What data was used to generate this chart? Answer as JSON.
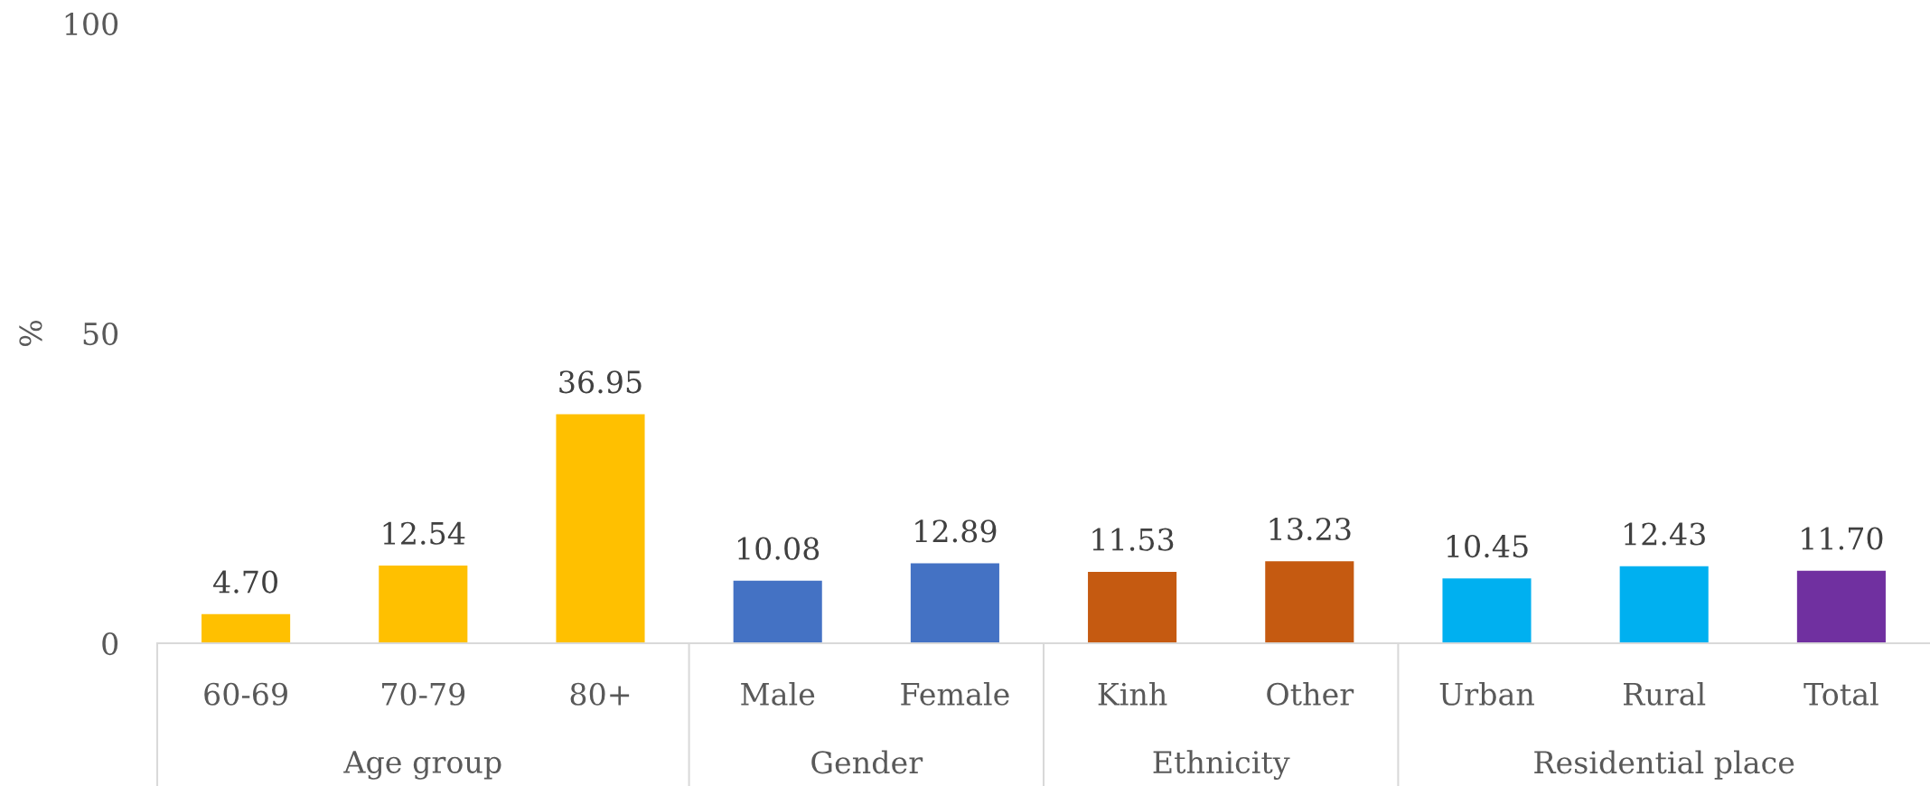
{
  "chart_data": {
    "type": "bar",
    "categories": [
      "60-69",
      "70-79",
      "80+",
      "Male",
      "Female",
      "Kinh",
      "Other",
      "Urban",
      "Rural",
      "Total"
    ],
    "series": [
      {
        "color": "#ffc000",
        "values": [
          4.7,
          12.54,
          36.95,
          null,
          null,
          null,
          null,
          null,
          null,
          null
        ],
        "value_labels": [
          "4.70",
          "12.54",
          "36.95",
          null,
          null,
          null,
          null,
          null,
          null,
          null
        ]
      },
      {
        "color": "#4472c4",
        "values": [
          null,
          null,
          null,
          10.08,
          12.89,
          null,
          null,
          null,
          null,
          null
        ],
        "value_labels": [
          null,
          null,
          null,
          "10.08",
          "12.89",
          null,
          null,
          null,
          null,
          null
        ]
      },
      {
        "color": "#c55a11",
        "values": [
          null,
          null,
          null,
          null,
          null,
          11.53,
          13.23,
          null,
          null,
          null
        ],
        "value_labels": [
          null,
          null,
          null,
          null,
          null,
          "11.53",
          "13.23",
          null,
          null,
          null
        ]
      },
      {
        "colors": [
          null,
          null,
          null,
          null,
          null,
          null,
          null,
          "#00b0f0",
          "#00b0f0",
          "#7030a0"
        ],
        "values": [
          null,
          null,
          null,
          null,
          null,
          null,
          null,
          10.45,
          12.43,
          11.7
        ],
        "value_labels": [
          null,
          null,
          null,
          null,
          null,
          null,
          null,
          "10.45",
          "12.43",
          "11.70"
        ]
      }
    ],
    "annotations": [
      "Age group",
      "Gender",
      "Ethnicity",
      "Residential place"
    ],
    "ylabel": "%",
    "ylim": [
      0,
      100
    ],
    "yticks": [
      0,
      50,
      100
    ],
    "grid": false,
    "legend": false
  }
}
